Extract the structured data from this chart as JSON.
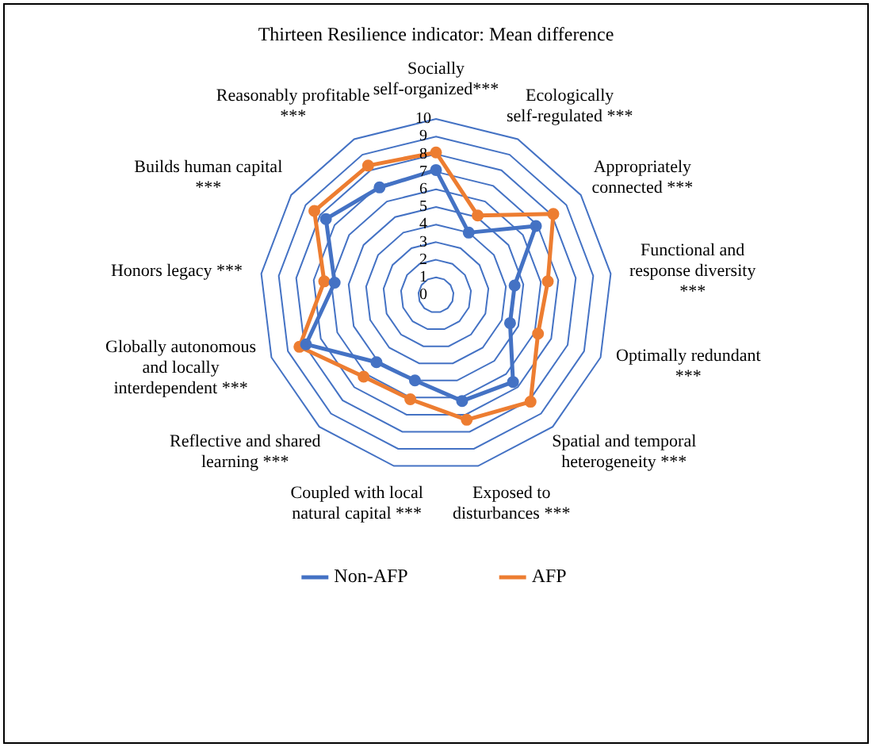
{
  "chart_data": {
    "type": "radar",
    "title": "Thirteen Resilience indicator: Mean difference",
    "categories": [
      "Socially self-organized***",
      "Ecologically self-regulated ***",
      "Appropriately connected ***",
      "Functional and response diversity ***",
      "Optimally redundant ***",
      "Spatial and temporal heterogeneity ***",
      "Exposed to disturbances ***",
      "Coupled with local natural capital ***",
      "Reflective and shared learning ***",
      "Globally autonomous and locally interdependent ***",
      "Honors legacy ***",
      "Builds human capital ***",
      "Reasonably profitable ***"
    ],
    "series": [
      {
        "name": "Non-AFP",
        "color": "#4472c4",
        "values": [
          7.1,
          4.0,
          6.9,
          4.5,
          4.5,
          6.6,
          6.2,
          5.0,
          5.1,
          7.9,
          5.8,
          7.6,
          6.9
        ]
      },
      {
        "name": "AFP",
        "color": "#ed7d31",
        "values": [
          8.1,
          5.1,
          8.1,
          6.4,
          6.2,
          8.1,
          7.3,
          6.1,
          6.2,
          8.3,
          6.4,
          8.4,
          8.3
        ]
      }
    ],
    "ylim": [
      0,
      10
    ],
    "yticks": [
      0,
      1,
      2,
      3,
      4,
      5,
      6,
      7,
      8,
      9,
      10
    ],
    "grid": true,
    "legend": "bottom",
    "marker": "circle",
    "line_style": "solid"
  }
}
